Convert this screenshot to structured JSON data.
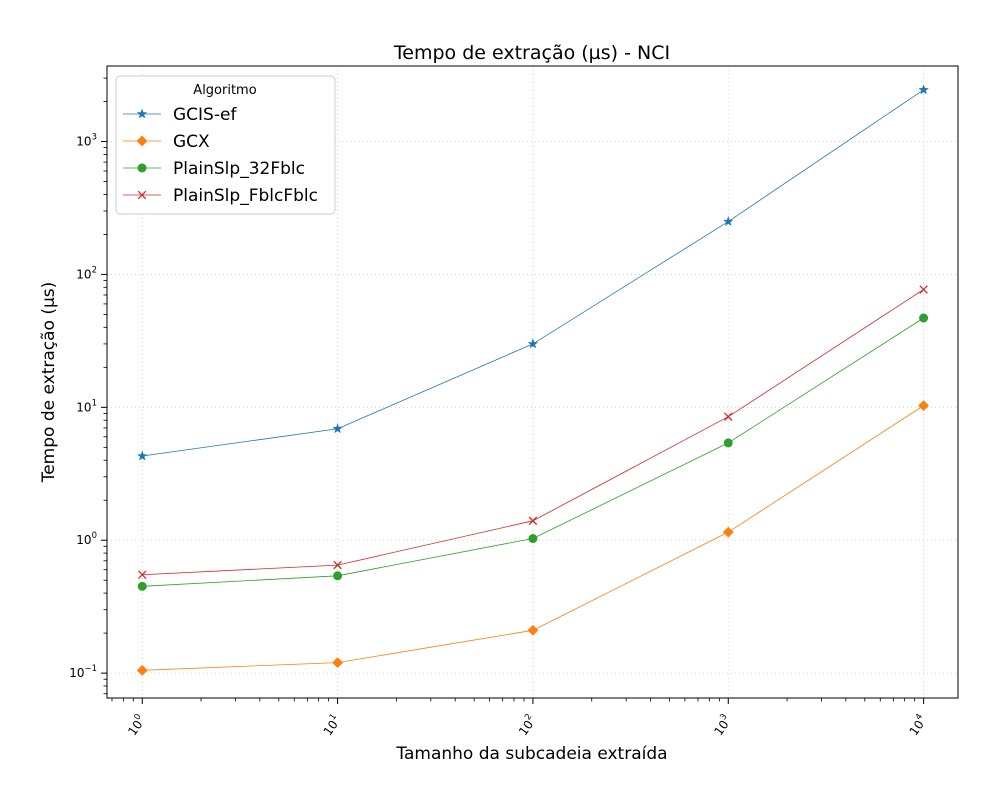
{
  "chart_data": {
    "type": "line",
    "title": "Tempo de extração (µs) - NCI",
    "xlabel": "Tamanho da subcadeia extraída",
    "ylabel": "Tempo de extração (µs)",
    "xscale": "log",
    "yscale": "log",
    "xlim": [
      0.66,
      15000
    ],
    "ylim": [
      0.065,
      3700
    ],
    "grid": true,
    "x": [
      1,
      10,
      100,
      1000,
      10000
    ],
    "x_ticks": [
      {
        "value": 1,
        "base": "10",
        "exp": "0"
      },
      {
        "value": 10,
        "base": "10",
        "exp": "1"
      },
      {
        "value": 100,
        "base": "10",
        "exp": "2"
      },
      {
        "value": 1000,
        "base": "10",
        "exp": "3"
      },
      {
        "value": 10000,
        "base": "10",
        "exp": "4"
      }
    ],
    "y_ticks": [
      {
        "value": 0.1,
        "base": "10",
        "exp": "−1"
      },
      {
        "value": 1,
        "base": "10",
        "exp": "0"
      },
      {
        "value": 10,
        "base": "10",
        "exp": "1"
      },
      {
        "value": 100,
        "base": "10",
        "exp": "2"
      },
      {
        "value": 1000,
        "base": "10",
        "exp": "3"
      }
    ],
    "legend": {
      "title": "Algoritmo",
      "placement": "top-left"
    },
    "series": [
      {
        "name": "GCIS-ef",
        "color": "#1f77b4",
        "marker": "star",
        "values": [
          4.3,
          6.9,
          30,
          250,
          2450
        ]
      },
      {
        "name": "GCX",
        "color": "#ff7f0e",
        "marker": "diamond",
        "values": [
          0.105,
          0.12,
          0.21,
          1.15,
          10.3
        ]
      },
      {
        "name": "PlainSlp_32Fblc",
        "color": "#2ca02c",
        "marker": "circle",
        "values": [
          0.45,
          0.54,
          1.03,
          5.4,
          47
        ]
      },
      {
        "name": "PlainSlp_FblcFblc",
        "color": "#d62728",
        "marker": "x",
        "values": [
          0.55,
          0.65,
          1.4,
          8.5,
          77
        ]
      }
    ]
  }
}
